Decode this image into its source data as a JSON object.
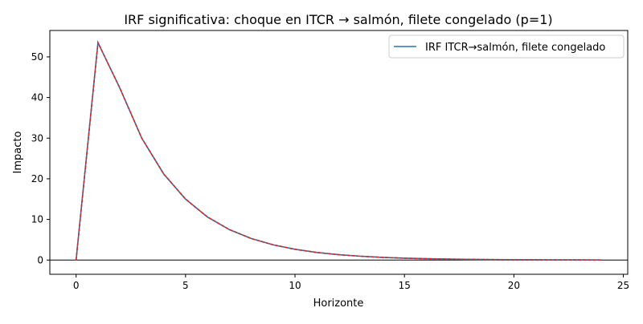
{
  "chart_data": {
    "type": "line",
    "title": "IRF significativa: choque en ITCR → salmón, filete congelado (p=1)",
    "xlabel": "Horizonte",
    "ylabel": "Impacto",
    "xlim": [
      -1.2,
      25.2
    ],
    "ylim": [
      -3.5,
      56.5
    ],
    "xticks": [
      0,
      5,
      10,
      15,
      20,
      25
    ],
    "yticks": [
      0,
      10,
      20,
      30,
      40,
      50
    ],
    "grid": false,
    "legend": "top-right",
    "zero_line": true,
    "series": [
      {
        "name": "IRF ITCR→salmón, filete congelado",
        "color": "#1f77b4",
        "x": [
          0,
          1,
          2,
          3,
          4,
          5,
          6,
          7,
          8,
          9,
          10,
          11,
          12,
          13,
          14,
          15,
          16,
          17,
          18,
          19,
          20,
          21,
          22,
          23,
          24
        ],
        "values": [
          0,
          53.5,
          42.3,
          30.0,
          21.2,
          15.0,
          10.6,
          7.5,
          5.3,
          3.75,
          2.65,
          1.87,
          1.32,
          0.94,
          0.66,
          0.47,
          0.33,
          0.23,
          0.17,
          0.12,
          0.08,
          0.06,
          0.04,
          0.03,
          0.02
        ]
      }
    ],
    "overlay": {
      "color": "#d62728",
      "style": "dashed",
      "x": [
        0,
        1,
        2,
        3,
        4,
        5,
        6,
        7,
        8,
        9,
        10,
        11,
        12,
        13,
        14,
        15,
        16,
        17,
        18,
        19,
        20,
        21,
        22,
        23,
        24
      ],
      "values": [
        0,
        53.5,
        42.3,
        30.0,
        21.2,
        15.0,
        10.6,
        7.5,
        5.3,
        3.75,
        2.65,
        1.87,
        1.32,
        0.94,
        0.66,
        0.47,
        0.33,
        0.23,
        0.17,
        0.12,
        0.08,
        0.06,
        0.04,
        0.03,
        0.02
      ]
    }
  }
}
